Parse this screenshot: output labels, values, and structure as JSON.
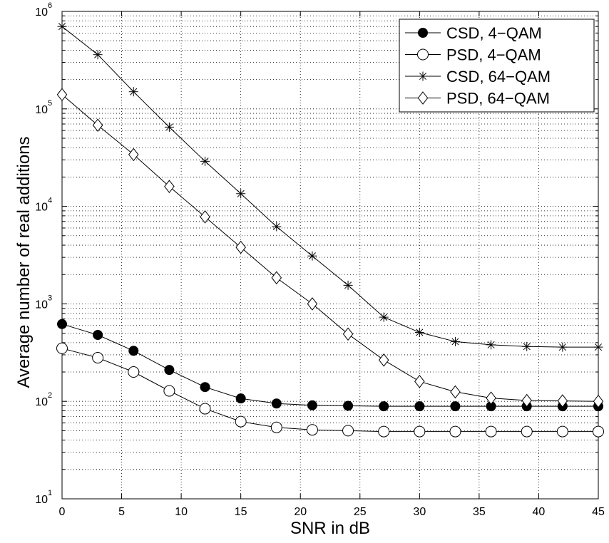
{
  "chart_data": {
    "type": "line",
    "title": "",
    "xlabel": "SNR in dB",
    "ylabel": "Average number of real additions",
    "x_scale": "linear",
    "y_scale": "log",
    "xlim": [
      0,
      45
    ],
    "ylim": [
      10,
      1000000
    ],
    "grid": true,
    "legend_position": "top-right",
    "x_ticks": [
      0,
      5,
      10,
      15,
      20,
      25,
      30,
      35,
      40,
      45
    ],
    "x_tick_labels": [
      "0",
      "5",
      "10",
      "15",
      "20",
      "25",
      "30",
      "35",
      "40",
      "45"
    ],
    "y_ticks": [
      {
        "value": 10,
        "base": "10",
        "exp": "1"
      },
      {
        "value": 100,
        "base": "10",
        "exp": "2"
      },
      {
        "value": 1000,
        "base": "10",
        "exp": "3"
      },
      {
        "value": 10000,
        "base": "10",
        "exp": "4"
      },
      {
        "value": 100000,
        "base": "10",
        "exp": "5"
      },
      {
        "value": 1000000,
        "base": "10",
        "exp": "6"
      }
    ],
    "x": [
      0,
      3,
      6,
      9,
      12,
      15,
      18,
      21,
      24,
      27,
      30,
      33,
      36,
      39,
      42,
      45
    ],
    "series": [
      {
        "name": "CSD, 4−QAM",
        "marker": "filled-circle",
        "color": "#000000",
        "values": [
          620,
          480,
          330,
          210,
          140,
          107,
          95,
          91,
          90,
          89,
          89,
          89,
          89,
          89,
          89,
          89
        ]
      },
      {
        "name": "PSD, 4−QAM",
        "marker": "open-circle",
        "color": "#000000",
        "values": [
          350,
          280,
          200,
          128,
          84,
          62,
          54,
          51,
          50,
          49,
          49,
          49,
          49,
          49,
          49,
          49
        ]
      },
      {
        "name": "CSD, 64−QAM",
        "marker": "asterisk",
        "color": "#000000",
        "values": [
          700000,
          360000,
          150000,
          65000,
          29000,
          13500,
          6200,
          3100,
          1550,
          730,
          510,
          410,
          380,
          365,
          360,
          360
        ]
      },
      {
        "name": "PSD, 64−QAM",
        "marker": "diamond",
        "color": "#000000",
        "values": [
          140000,
          68000,
          34000,
          16000,
          7800,
          3800,
          1850,
          1000,
          490,
          265,
          160,
          125,
          108,
          102,
          101,
          100
        ]
      }
    ]
  }
}
